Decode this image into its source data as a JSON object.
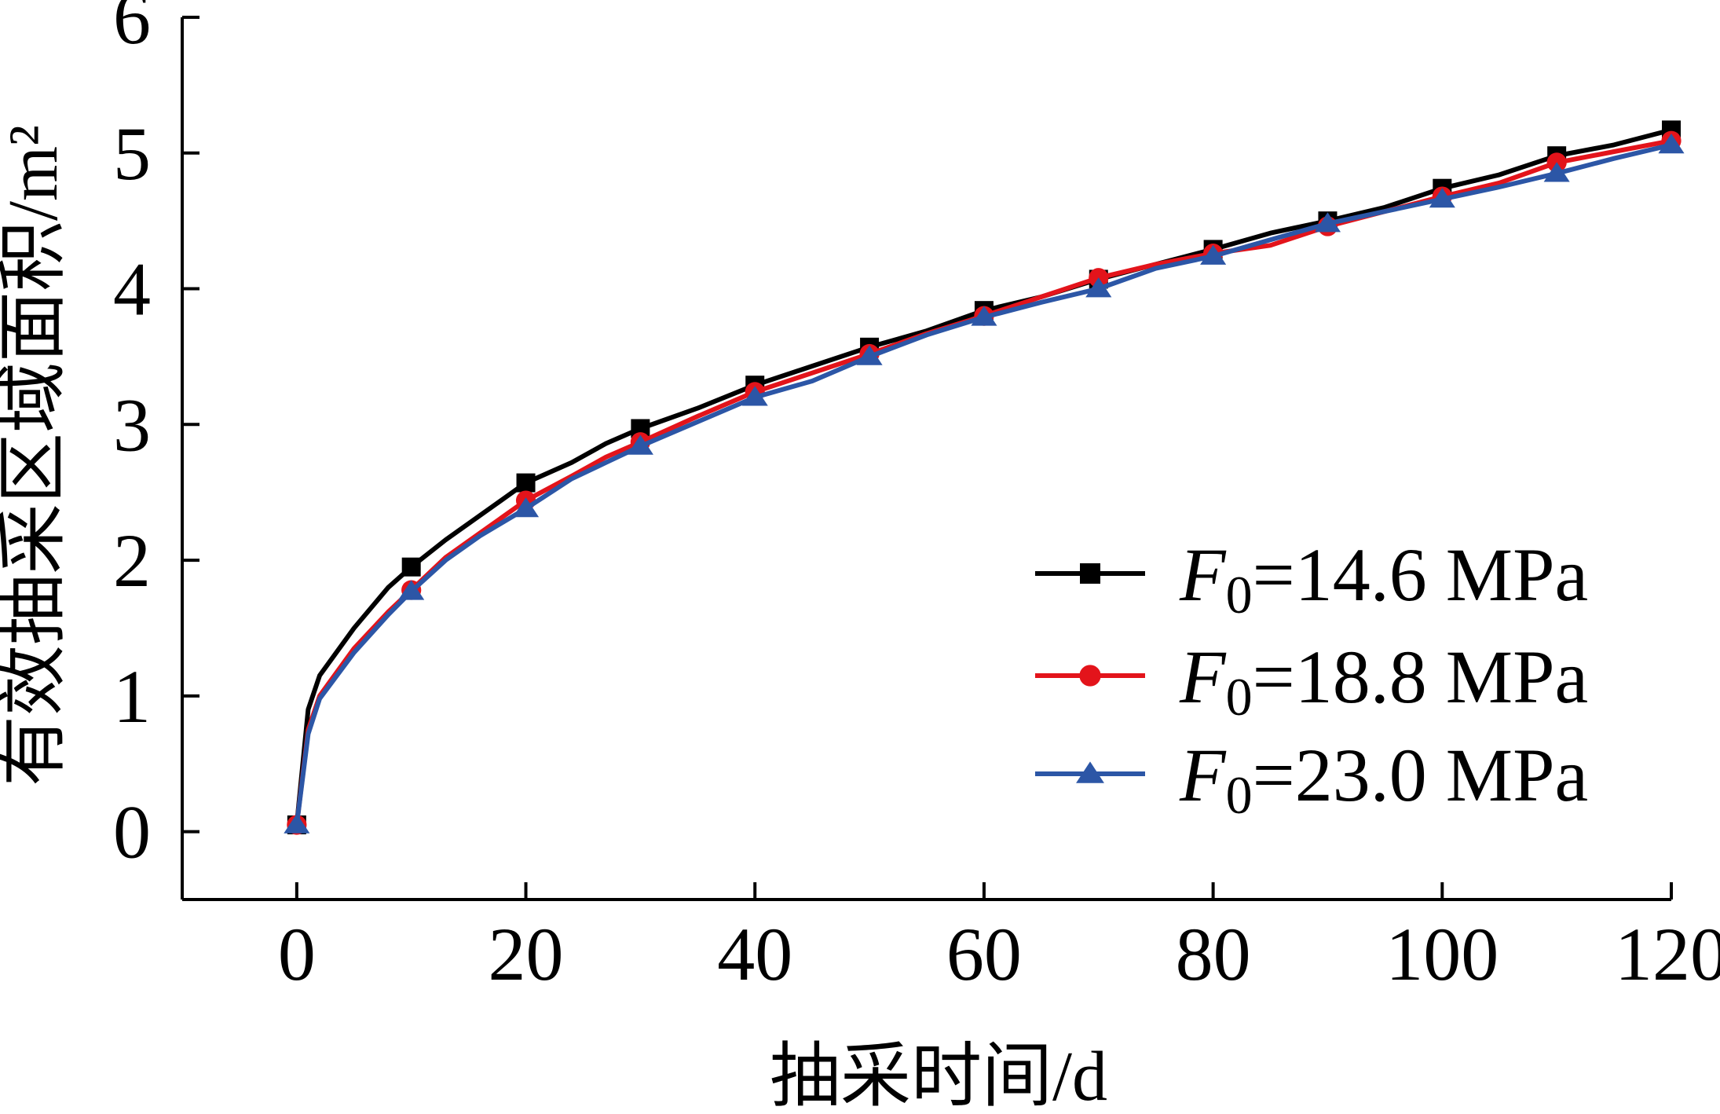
{
  "chart_data": {
    "type": "line",
    "xlabel": "抽采时间/d",
    "ylabel": "有效抽采区域面积/m²",
    "xlim": [
      -10,
      120
    ],
    "ylim": [
      -0.5,
      6
    ],
    "x_ticks": [
      0,
      20,
      40,
      60,
      80,
      100,
      120
    ],
    "y_ticks": [
      0,
      1,
      2,
      3,
      4,
      5,
      6
    ],
    "grid": false,
    "legend_position": "right",
    "series": [
      {
        "name": "F₀=14.6 MPa",
        "legend_prefix": "F",
        "legend_subscript": "0",
        "legend_suffix": "=14.6 MPa",
        "color": "#000000",
        "marker": "square",
        "x": [
          0,
          1,
          2,
          5,
          8,
          10,
          13,
          16,
          20,
          24,
          27,
          30,
          35,
          40,
          45,
          50,
          55,
          60,
          65,
          70,
          75,
          80,
          85,
          90,
          95,
          100,
          105,
          110,
          115,
          120
        ],
        "y": [
          0.05,
          0.9,
          1.15,
          1.5,
          1.8,
          1.95,
          2.15,
          2.33,
          2.57,
          2.72,
          2.86,
          2.97,
          3.12,
          3.29,
          3.43,
          3.57,
          3.69,
          3.84,
          3.94,
          4.07,
          4.18,
          4.29,
          4.41,
          4.5,
          4.6,
          4.74,
          4.84,
          4.98,
          5.06,
          5.17
        ]
      },
      {
        "name": "F₀=18.8 MPa",
        "legend_prefix": "F",
        "legend_subscript": "0",
        "legend_suffix": "=18.8 MPa",
        "color": "#e3141b",
        "marker": "circle",
        "x": [
          0,
          1,
          2,
          5,
          8,
          10,
          13,
          16,
          20,
          24,
          27,
          30,
          35,
          40,
          45,
          50,
          55,
          60,
          65,
          70,
          75,
          80,
          85,
          90,
          95,
          100,
          105,
          110,
          115,
          120
        ],
        "y": [
          0.05,
          0.75,
          1.0,
          1.35,
          1.62,
          1.78,
          2.02,
          2.2,
          2.44,
          2.62,
          2.76,
          2.87,
          3.06,
          3.24,
          3.38,
          3.52,
          3.67,
          3.8,
          3.94,
          4.08,
          4.18,
          4.26,
          4.32,
          4.46,
          4.57,
          4.68,
          4.78,
          4.93,
          5.01,
          5.09
        ]
      },
      {
        "name": "F₀=23.0 MPa",
        "legend_prefix": "F",
        "legend_subscript": "0",
        "legend_suffix": "=23.0 MPa",
        "color": "#2c56a6",
        "marker": "triangle",
        "x": [
          0,
          1,
          2,
          5,
          8,
          10,
          13,
          16,
          20,
          24,
          27,
          30,
          35,
          40,
          45,
          50,
          55,
          60,
          65,
          70,
          75,
          80,
          85,
          90,
          95,
          100,
          105,
          110,
          115,
          120
        ],
        "y": [
          0.05,
          0.72,
          0.98,
          1.32,
          1.6,
          1.77,
          2.0,
          2.18,
          2.38,
          2.6,
          2.72,
          2.84,
          3.02,
          3.2,
          3.32,
          3.5,
          3.66,
          3.79,
          3.9,
          4.0,
          4.15,
          4.24,
          4.36,
          4.48,
          4.57,
          4.66,
          4.75,
          4.85,
          4.96,
          5.06
        ]
      }
    ]
  }
}
